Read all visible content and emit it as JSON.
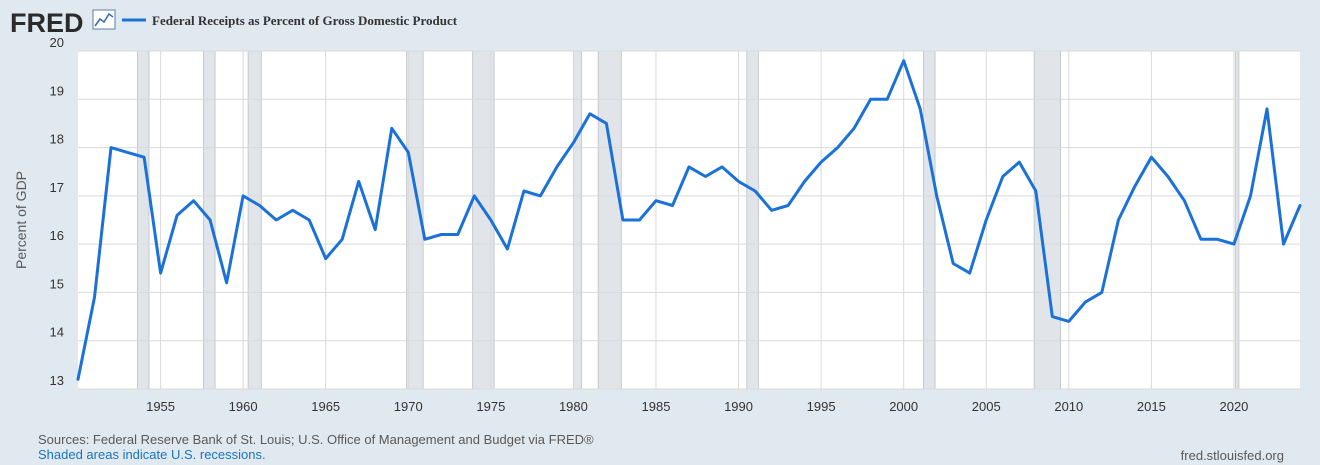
{
  "logo": {
    "text": "FRED"
  },
  "legend": {
    "series_label": "Federal Receipts as Percent of Gross Domestic Product"
  },
  "footer": {
    "sources": "Sources: Federal Reserve Bank of St. Louis; U.S. Office of Management and Budget via FRED®",
    "notes": "Shaded areas indicate U.S. recessions.",
    "site": "fred.stlouisfed.org"
  },
  "colors": {
    "series": "#1a72d9",
    "recession": "#e1e5e9",
    "background": "#e1e9f0",
    "plot_bg": "#ffffff",
    "grid": "#d9d9d9",
    "logo": "#2b2b2b"
  },
  "chart_data": {
    "type": "line",
    "title": "Federal Receipts as Percent of Gross Domestic Product",
    "xlabel": "",
    "ylabel": "Percent of GDP",
    "xlim": [
      1950,
      2024
    ],
    "ylim": [
      13,
      20
    ],
    "yticks": [
      13,
      14,
      15,
      16,
      17,
      18,
      19,
      20
    ],
    "xticks": [
      1955,
      1960,
      1965,
      1970,
      1975,
      1980,
      1985,
      1990,
      1995,
      2000,
      2005,
      2010,
      2015,
      2020
    ],
    "grid": true,
    "legend_position": "top-left",
    "recessions": [
      [
        1953.6,
        1954.3
      ],
      [
        1957.6,
        1958.3
      ],
      [
        1960.3,
        1961.1
      ],
      [
        1969.9,
        1970.9
      ],
      [
        1973.9,
        1975.2
      ],
      [
        1980.0,
        1980.5
      ],
      [
        1981.5,
        1982.9
      ],
      [
        1990.5,
        1991.2
      ],
      [
        2001.2,
        2001.9
      ],
      [
        2007.9,
        2009.5
      ],
      [
        2020.1,
        2020.3
      ]
    ],
    "series": [
      {
        "name": "Federal Receipts as Percent of Gross Domestic Product",
        "x": [
          1950,
          1951,
          1952,
          1953,
          1954,
          1955,
          1956,
          1957,
          1958,
          1959,
          1960,
          1961,
          1962,
          1963,
          1964,
          1965,
          1966,
          1967,
          1968,
          1969,
          1970,
          1971,
          1972,
          1973,
          1974,
          1975,
          1976,
          1977,
          1978,
          1979,
          1980,
          1981,
          1982,
          1983,
          1984,
          1985,
          1986,
          1987,
          1988,
          1989,
          1990,
          1991,
          1992,
          1993,
          1994,
          1995,
          1996,
          1997,
          1998,
          1999,
          2000,
          2001,
          2002,
          2003,
          2004,
          2005,
          2006,
          2007,
          2008,
          2009,
          2010,
          2011,
          2012,
          2013,
          2014,
          2015,
          2016,
          2017,
          2018,
          2019,
          2020,
          2021,
          2022,
          2023,
          2024
        ],
        "values": [
          13.2,
          14.9,
          18.0,
          17.9,
          17.8,
          15.4,
          16.6,
          16.9,
          16.5,
          15.2,
          17.0,
          16.8,
          16.5,
          16.7,
          16.5,
          15.7,
          16.1,
          17.3,
          16.3,
          18.4,
          17.9,
          16.1,
          16.2,
          16.2,
          17.0,
          16.5,
          15.9,
          17.1,
          17.0,
          17.6,
          18.1,
          18.7,
          18.5,
          16.5,
          16.5,
          16.9,
          16.8,
          17.6,
          17.4,
          17.6,
          17.3,
          17.1,
          16.7,
          16.8,
          17.3,
          17.7,
          18.0,
          18.4,
          19.0,
          19.0,
          19.8,
          18.8,
          17.0,
          15.6,
          15.4,
          16.5,
          17.4,
          17.7,
          17.1,
          14.5,
          14.4,
          14.8,
          15.0,
          16.5,
          17.2,
          17.8,
          17.4,
          16.9,
          16.1,
          16.1,
          16.0,
          17.0,
          18.8,
          16.0,
          16.8
        ]
      }
    ]
  }
}
